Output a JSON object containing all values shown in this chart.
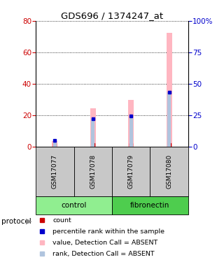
{
  "title": "GDS696 / 1374247_at",
  "samples": [
    "GSM17077",
    "GSM17078",
    "GSM17079",
    "GSM17080"
  ],
  "group_colors": {
    "control": "#90EE90",
    "fibronectin": "#4ECD4E"
  },
  "bar_values_absent": [
    3.5,
    24.5,
    29.5,
    72.5
  ],
  "rank_values_absent_pct": [
    5,
    22,
    24,
    43
  ],
  "count_values": [
    1,
    1,
    1,
    1
  ],
  "ylim_left": [
    0,
    80
  ],
  "ylim_right": [
    0,
    100
  ],
  "left_ticks": [
    0,
    20,
    40,
    60,
    80
  ],
  "right_ticks": [
    0,
    25,
    50,
    75,
    100
  ],
  "right_tick_labels": [
    "0",
    "25",
    "50",
    "75",
    "100%"
  ],
  "left_color": "#cc0000",
  "right_color": "#0000cc",
  "bar_color_absent": "#FFB6C1",
  "rank_color_absent": "#B0C4DE",
  "count_color": "#cc0000",
  "rank_color": "#0000cc",
  "sample_bg_color": "#c8c8c8",
  "bar_width": 0.15,
  "legend_items": [
    {
      "color": "#cc0000",
      "label": "count"
    },
    {
      "color": "#0000cc",
      "label": "percentile rank within the sample"
    },
    {
      "color": "#FFB6C1",
      "label": "value, Detection Call = ABSENT"
    },
    {
      "color": "#B0C4DE",
      "label": "rank, Detection Call = ABSENT"
    }
  ]
}
